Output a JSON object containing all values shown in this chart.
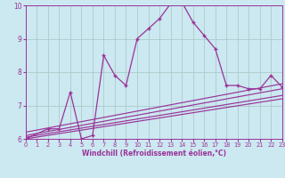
{
  "bg_color": "#cce8f0",
  "grid_color": "#aacccc",
  "line_color": "#993399",
  "x_min": 0,
  "x_max": 23,
  "y_min": 6,
  "y_max": 10,
  "xlabel": "Windchill (Refroidissement éolien,°C)",
  "main_x": [
    0,
    2,
    3,
    4,
    5,
    6,
    7,
    8,
    9,
    10,
    11,
    12,
    13,
    14,
    15,
    16,
    17,
    18,
    19,
    20,
    21,
    22,
    23
  ],
  "main_y": [
    6.0,
    6.3,
    6.3,
    7.4,
    6.0,
    6.1,
    8.5,
    7.9,
    7.6,
    9.0,
    9.3,
    9.6,
    10.05,
    10.1,
    9.5,
    9.1,
    8.7,
    7.6,
    7.6,
    7.5,
    7.5,
    7.9,
    7.55
  ],
  "trend1_x": [
    0,
    23
  ],
  "trend1_y": [
    6.0,
    7.2
  ],
  "trend2_x": [
    0,
    23
  ],
  "trend2_y": [
    6.05,
    7.3
  ],
  "trend3_x": [
    0,
    23
  ],
  "trend3_y": [
    6.1,
    7.5
  ],
  "trend4_x": [
    0,
    23
  ],
  "trend4_y": [
    6.2,
    7.65
  ],
  "xticks": [
    0,
    1,
    2,
    3,
    4,
    5,
    6,
    7,
    8,
    9,
    10,
    11,
    12,
    13,
    14,
    15,
    16,
    17,
    18,
    19,
    20,
    21,
    22,
    23
  ],
  "yticks": [
    6,
    7,
    8,
    9,
    10
  ],
  "xlabel_fontsize": 5.5,
  "xtick_fontsize": 4.8,
  "ytick_fontsize": 5.5
}
